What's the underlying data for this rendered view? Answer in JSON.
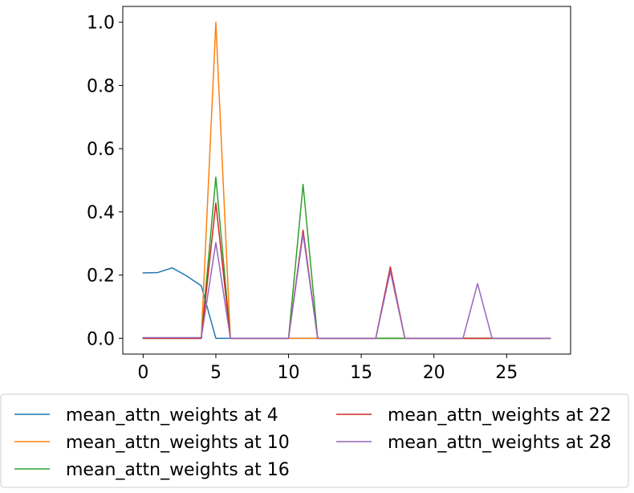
{
  "chart_data": {
    "type": "line",
    "title": "",
    "xlabel": "",
    "ylabel": "",
    "xlim": [
      -1.4,
      29.4
    ],
    "ylim": [
      -0.05,
      1.05
    ],
    "xticks": [
      0,
      5,
      10,
      15,
      20,
      25
    ],
    "yticks": [
      0.0,
      0.2,
      0.4,
      0.6,
      0.8,
      1.0
    ],
    "xtick_labels": [
      "0",
      "5",
      "10",
      "15",
      "20",
      "25"
    ],
    "ytick_labels": [
      "0.0",
      "0.2",
      "0.4",
      "0.6",
      "0.8",
      "1.0"
    ],
    "grid": false,
    "legend_placement": "bottom-center",
    "legend_columns": 2,
    "x": [
      0,
      1,
      2,
      3,
      4,
      5,
      6,
      7,
      8,
      9,
      10,
      11,
      12,
      13,
      14,
      15,
      16,
      17,
      18,
      19,
      20,
      21,
      22,
      23,
      24,
      25,
      26,
      27,
      28
    ],
    "series": [
      {
        "name": "mean_attn_weights at 4",
        "color": "#1f77b4",
        "values": [
          0.207,
          0.208,
          0.223,
          0.197,
          0.166,
          0.0,
          0.0,
          0.0,
          0.0,
          0.0,
          0.0,
          0.0,
          0.0,
          0.0,
          0.0,
          0.0,
          0.0,
          0.0,
          0.0,
          0.0,
          0.0,
          0.0,
          0.0,
          0.0,
          0.0,
          0.0,
          0.0,
          0.0,
          0.0
        ]
      },
      {
        "name": "mean_attn_weights at 10",
        "color": "#ff7f0e",
        "values": [
          0.0,
          0.0,
          0.0,
          0.0,
          0.0,
          1.0,
          0.0,
          0.0,
          0.0,
          0.0,
          0.0,
          0.0,
          0.0,
          0.0,
          0.0,
          0.0,
          0.0,
          0.0,
          0.0,
          0.0,
          0.0,
          0.0,
          0.0,
          0.0,
          0.0,
          0.0,
          0.0,
          0.0,
          0.0
        ]
      },
      {
        "name": "mean_attn_weights at 16",
        "color": "#2ca02c",
        "values": [
          0.0,
          0.0,
          0.0,
          0.0,
          0.0,
          0.51,
          0.0,
          0.0,
          0.0,
          0.0,
          0.0,
          0.487,
          0.0,
          0.0,
          0.0,
          0.0,
          0.0,
          0.0,
          0.0,
          0.0,
          0.0,
          0.0,
          0.0,
          0.0,
          0.0,
          0.0,
          0.0,
          0.0,
          0.0
        ]
      },
      {
        "name": "mean_attn_weights at 22",
        "color": "#d62728",
        "values": [
          0.0,
          0.0,
          0.0,
          0.0,
          0.0,
          0.428,
          0.0,
          0.0,
          0.0,
          0.0,
          0.0,
          0.342,
          0.0,
          0.0,
          0.0,
          0.0,
          0.0,
          0.226,
          0.0,
          0.0,
          0.0,
          0.0,
          0.0,
          0.0,
          0.0,
          0.0,
          0.0,
          0.0,
          0.0
        ]
      },
      {
        "name": "mean_attn_weights at 28",
        "color": "#9467bd",
        "values": [
          0.002,
          0.002,
          0.002,
          0.002,
          0.002,
          0.303,
          0.0,
          0.0,
          0.0,
          0.0,
          0.0,
          0.33,
          0.0,
          0.0,
          0.0,
          0.0,
          0.0,
          0.212,
          0.0,
          0.0,
          0.0,
          0.0,
          0.0,
          0.173,
          0.0,
          0.0,
          0.0,
          0.0,
          0.0
        ]
      }
    ]
  }
}
